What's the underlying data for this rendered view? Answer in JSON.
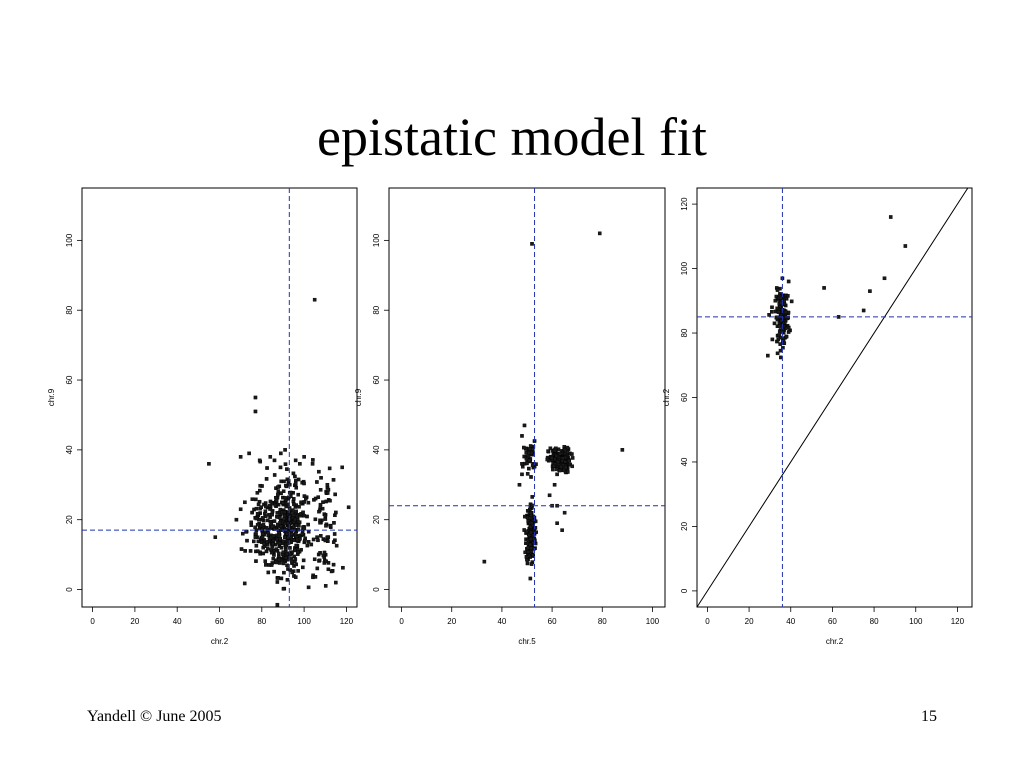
{
  "slide": {
    "title": "epistatic model fit",
    "footer_left": "Yandell © June 2005",
    "page_number": "15"
  },
  "chart_data": [
    {
      "type": "scatter",
      "title": "",
      "xlabel": "chr.2",
      "ylabel": "chr.9",
      "xlim": [
        -5,
        125
      ],
      "ylim": [
        -5,
        115
      ],
      "xticks": [
        0,
        20,
        40,
        60,
        80,
        100,
        120
      ],
      "yticks": [
        0,
        20,
        40,
        60,
        80,
        100
      ],
      "vline": 93,
      "hline": 17,
      "diagonal": false,
      "points": [
        [
          105,
          83
        ],
        [
          77,
          55
        ],
        [
          77,
          51
        ],
        [
          55,
          36
        ],
        [
          58,
          15
        ],
        [
          118,
          35
        ],
        [
          115,
          2
        ],
        [
          70,
          38
        ],
        [
          74,
          39
        ],
        [
          79,
          37
        ],
        [
          84,
          38
        ],
        [
          86,
          37
        ],
        [
          89,
          39
        ],
        [
          91,
          40
        ],
        [
          96,
          37
        ],
        [
          98,
          36
        ],
        [
          100,
          38
        ],
        [
          104,
          36
        ],
        [
          108,
          32
        ],
        [
          111,
          30
        ],
        [
          68,
          20
        ],
        [
          70,
          23
        ],
        [
          71,
          16
        ],
        [
          73,
          14
        ],
        [
          72,
          25
        ]
      ],
      "clusters": [
        {
          "cx": 92,
          "cy": 16,
          "sx": 4.5,
          "sy": 6,
          "n": 340
        },
        {
          "cx": 81,
          "cy": 17,
          "sx": 4,
          "sy": 6,
          "n": 120
        },
        {
          "cx": 110,
          "cy": 18,
          "sx": 3.5,
          "sy": 7,
          "n": 80
        },
        {
          "cx": 92,
          "cy": 29,
          "sx": 6,
          "sy": 4,
          "n": 40
        }
      ]
    },
    {
      "type": "scatter",
      "title": "",
      "xlabel": "chr.5",
      "ylabel": "chr.9",
      "xlim": [
        -5,
        105
      ],
      "ylim": [
        -5,
        115
      ],
      "xticks": [
        0,
        20,
        40,
        60,
        80,
        100
      ],
      "yticks": [
        0,
        20,
        40,
        60,
        80,
        100
      ],
      "vline": 53,
      "hline": 24,
      "diagonal": false,
      "points": [
        [
          52,
          99
        ],
        [
          79,
          102
        ],
        [
          88,
          40
        ],
        [
          33,
          8
        ],
        [
          49,
          47
        ],
        [
          48,
          44
        ],
        [
          48,
          36
        ],
        [
          48,
          33
        ],
        [
          47,
          30
        ],
        [
          59,
          27
        ],
        [
          62,
          24
        ],
        [
          65,
          22
        ],
        [
          62,
          19
        ],
        [
          60,
          24
        ],
        [
          64,
          17
        ],
        [
          61,
          30
        ],
        [
          51,
          37
        ]
      ],
      "clusters": [
        {
          "cx": 51.5,
          "cy": 16,
          "sx": 0.9,
          "sy": 4.5,
          "n": 180
        },
        {
          "cx": 63,
          "cy": 37,
          "sx": 2.2,
          "sy": 1.8,
          "n": 150
        },
        {
          "cx": 51,
          "cy": 38,
          "sx": 1.2,
          "sy": 2.2,
          "n": 35
        }
      ]
    },
    {
      "type": "scatter",
      "title": "",
      "xlabel": "chr.2",
      "ylabel": "chr.2",
      "xlim": [
        -5,
        127
      ],
      "ylim": [
        -5,
        125
      ],
      "xticks": [
        0,
        20,
        40,
        60,
        80,
        100,
        120
      ],
      "yticks": [
        0,
        20,
        40,
        60,
        80,
        100,
        120
      ],
      "vline": 36,
      "hline": 85,
      "diagonal": true,
      "points": [
        [
          88,
          116
        ],
        [
          95,
          107
        ],
        [
          85,
          97
        ],
        [
          78,
          93
        ],
        [
          75,
          87
        ],
        [
          63,
          85
        ],
        [
          56,
          94
        ],
        [
          29,
          73
        ],
        [
          36,
          97
        ],
        [
          39,
          96
        ],
        [
          31,
          88
        ],
        [
          34,
          78
        ]
      ],
      "clusters": [
        {
          "cx": 36,
          "cy": 85,
          "sx": 1.7,
          "sy": 4,
          "n": 140
        }
      ]
    }
  ]
}
